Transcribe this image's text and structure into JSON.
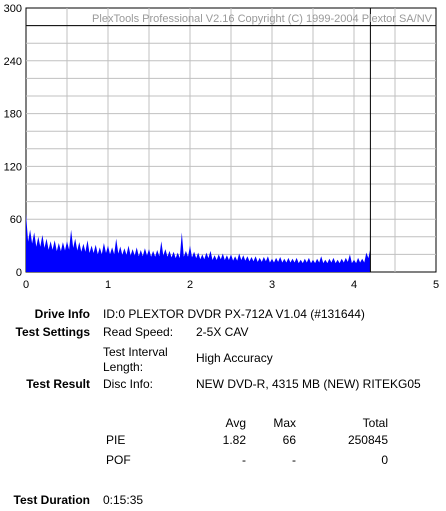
{
  "chart_data": {
    "type": "area",
    "title": "PlexTools Professional V2.16 Copyright (C) 1999-2004 Plextor SA/NV",
    "xlim": [
      0,
      5
    ],
    "ylim": [
      0,
      300
    ],
    "x_ticks": [
      "0",
      "1",
      "2",
      "3",
      "4",
      "5"
    ],
    "y_ticks": [
      "0",
      "60",
      "120",
      "180",
      "240",
      "300"
    ],
    "marker_x": 4.2,
    "marker_y": 280,
    "series_color": "#0000ff",
    "grid": true,
    "series": [
      {
        "x": [
          0.0,
          0.05,
          0.1,
          0.15,
          0.2,
          0.25,
          0.3,
          0.35,
          0.4,
          0.45,
          0.5,
          0.55,
          0.6,
          0.65,
          0.7,
          0.75,
          0.8,
          0.85,
          0.9,
          0.95,
          1.0,
          1.05,
          1.1,
          1.15,
          1.2,
          1.25,
          1.3,
          1.35,
          1.4,
          1.45,
          1.5,
          1.55,
          1.6,
          1.65,
          1.7,
          1.75,
          1.8,
          1.85,
          1.9,
          1.95,
          2.0,
          2.05,
          2.1,
          2.15,
          2.2,
          2.25,
          2.3,
          2.35,
          2.4,
          2.45,
          2.5,
          2.55,
          2.6,
          2.65,
          2.7,
          2.75,
          2.8,
          2.85,
          2.9,
          2.95,
          3.0,
          3.05,
          3.1,
          3.15,
          3.2,
          3.25,
          3.3,
          3.35,
          3.4,
          3.45,
          3.5,
          3.55,
          3.6,
          3.65,
          3.7,
          3.75,
          3.8,
          3.85,
          3.9,
          3.95,
          4.0,
          4.05,
          4.1,
          4.15,
          4.2
        ],
        "y": [
          66,
          48,
          45,
          40,
          42,
          38,
          35,
          36,
          33,
          34,
          35,
          48,
          38,
          34,
          32,
          36,
          30,
          31,
          28,
          33,
          30,
          28,
          38,
          29,
          27,
          30,
          26,
          28,
          25,
          27,
          26,
          24,
          25,
          35,
          26,
          24,
          23,
          22,
          45,
          24,
          30,
          23,
          22,
          20,
          22,
          24,
          19,
          20,
          21,
          19,
          20,
          18,
          21,
          19,
          18,
          17,
          18,
          16,
          17,
          18,
          15,
          16,
          17,
          15,
          16,
          15,
          16,
          14,
          15,
          16,
          14,
          15,
          18,
          14,
          15,
          16,
          14,
          15,
          16,
          20,
          14,
          16,
          15,
          22,
          27
        ]
      }
    ]
  },
  "info": {
    "drive_info_label": "Drive Info",
    "drive_info_value": "ID:0 PLEXTOR DVDR  PX-712A  V1.04 (#131644)",
    "test_settings_label": "Test Settings",
    "read_speed_label": "Read Speed:",
    "read_speed_value": "2-5X CAV",
    "interval_label_1": "Test Interval",
    "interval_label_2": "Length:",
    "interval_value": "High Accuracy",
    "test_result_label": "Test Result",
    "disc_info_label": "Disc Info:",
    "disc_info_value": "NEW DVD-R, 4315 MB (NEW) RITEKG05",
    "col_avg": "Avg",
    "col_max": "Max",
    "col_total": "Total",
    "pie_label": "PIE",
    "pie_avg": "1.82",
    "pie_max": "66",
    "pie_total": "250845",
    "pof_label": "POF",
    "pof_avg": "-",
    "pof_max": "-",
    "pof_total": "0",
    "duration_label": "Test Duration",
    "duration_value": "0:15:35"
  }
}
